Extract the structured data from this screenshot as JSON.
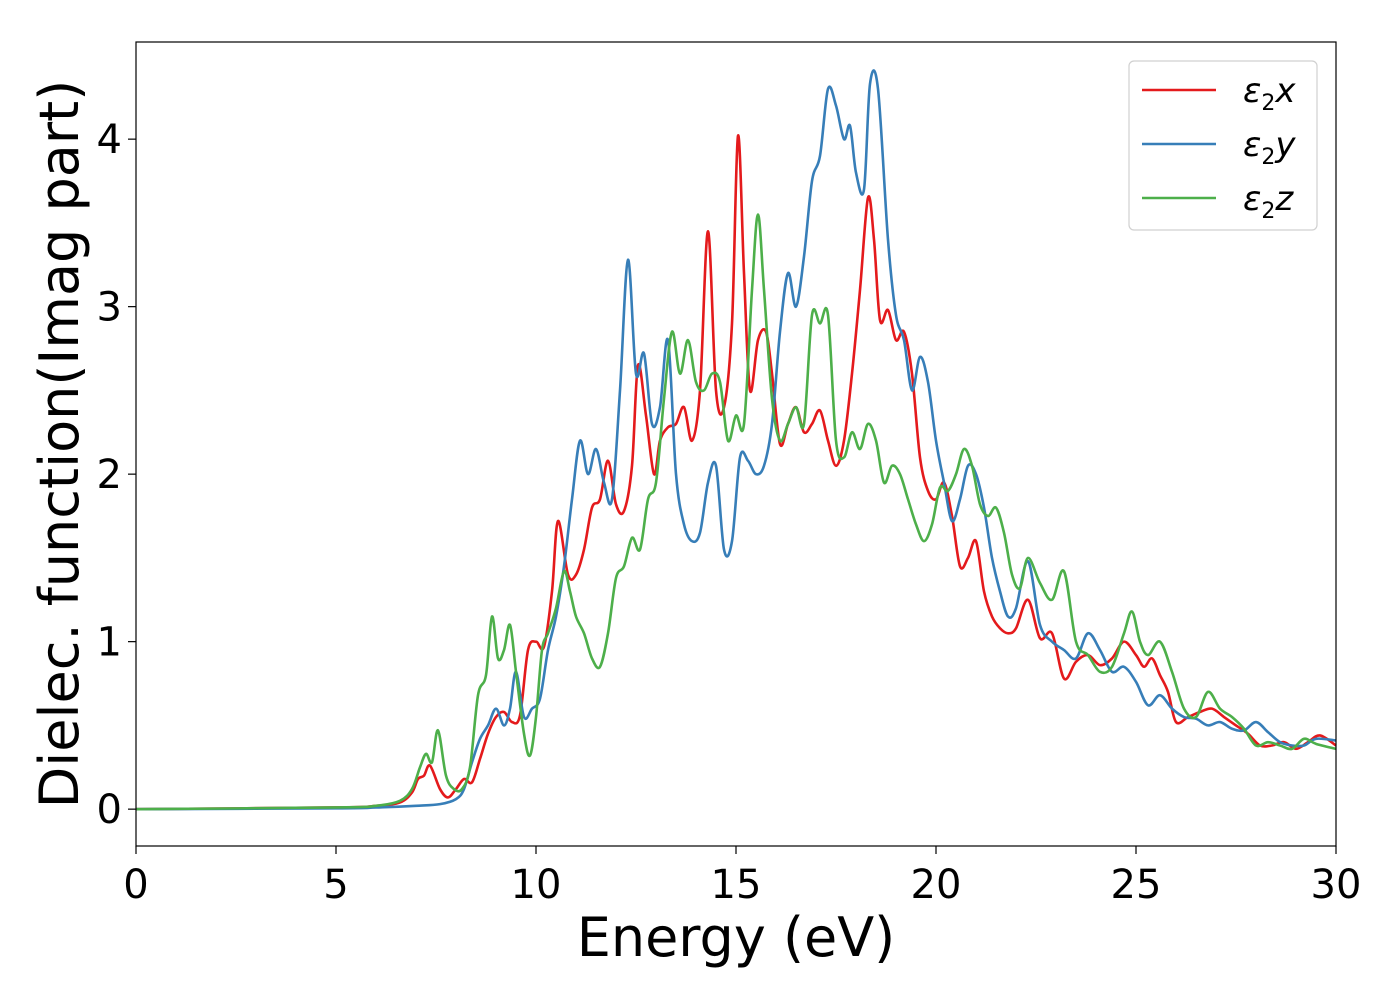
{
  "chart_data": {
    "type": "line",
    "xlabel": "Energy (eV)",
    "ylabel": "Dielec. function(Imag part)",
    "xlim": [
      0,
      30
    ],
    "ylim": [
      -0.22,
      4.58
    ],
    "xticks": [
      0,
      5,
      10,
      15,
      20,
      25,
      30
    ],
    "xtick_labels": [
      "0",
      "5",
      "10",
      "15",
      "20",
      "25",
      "30"
    ],
    "yticks": [
      0,
      1,
      2,
      3,
      4
    ],
    "ytick_labels": [
      "0",
      "1",
      "2",
      "3",
      "4"
    ],
    "grid": false,
    "legend_position": "top-right",
    "series": [
      {
        "name": "ε2x",
        "label_base": "ε",
        "label_sub": "2",
        "label_suffix": "x",
        "color": "#e41a1c",
        "x": [
          0,
          5,
          6,
          6.6,
          6.9,
          7.05,
          7.2,
          7.35,
          7.6,
          7.8,
          8.0,
          8.2,
          8.4,
          8.6,
          8.8,
          9.0,
          9.2,
          9.4,
          9.6,
          9.8,
          10.0,
          10.2,
          10.4,
          10.55,
          10.8,
          11.0,
          11.2,
          11.4,
          11.6,
          11.8,
          12.0,
          12.2,
          12.4,
          12.55,
          12.75,
          12.95,
          13.1,
          13.3,
          13.5,
          13.7,
          13.9,
          14.1,
          14.3,
          14.5,
          14.7,
          14.9,
          15.05,
          15.2,
          15.35,
          15.55,
          15.75,
          15.9,
          16.1,
          16.3,
          16.5,
          16.7,
          16.9,
          17.1,
          17.3,
          17.5,
          17.7,
          17.9,
          18.1,
          18.3,
          18.45,
          18.6,
          18.8,
          19.0,
          19.2,
          19.4,
          19.6,
          19.8,
          20.0,
          20.2,
          20.4,
          20.6,
          20.8,
          21.0,
          21.2,
          21.4,
          21.6,
          21.8,
          22.0,
          22.3,
          22.6,
          22.9,
          23.2,
          23.5,
          23.8,
          24.1,
          24.4,
          24.7,
          25.0,
          25.2,
          25.4,
          25.6,
          25.8,
          26.0,
          26.3,
          26.6,
          26.9,
          27.2,
          27.5,
          27.8,
          28.1,
          28.4,
          28.7,
          29.0,
          29.3,
          29.6,
          30.0
        ],
        "y": [
          0,
          0.01,
          0.02,
          0.04,
          0.1,
          0.18,
          0.2,
          0.26,
          0.12,
          0.07,
          0.12,
          0.18,
          0.16,
          0.3,
          0.45,
          0.55,
          0.58,
          0.52,
          0.56,
          0.95,
          1.0,
          0.97,
          1.3,
          1.72,
          1.4,
          1.4,
          1.55,
          1.8,
          1.85,
          2.08,
          1.82,
          1.78,
          2.05,
          2.65,
          2.35,
          2.0,
          2.2,
          2.28,
          2.3,
          2.4,
          2.2,
          2.5,
          3.45,
          2.5,
          2.4,
          2.9,
          4.02,
          3.2,
          2.5,
          2.8,
          2.85,
          2.6,
          2.18,
          2.3,
          2.4,
          2.25,
          2.3,
          2.38,
          2.2,
          2.05,
          2.2,
          2.6,
          3.1,
          3.65,
          3.4,
          2.92,
          2.98,
          2.8,
          2.85,
          2.6,
          2.1,
          1.9,
          1.85,
          1.95,
          1.75,
          1.45,
          1.5,
          1.6,
          1.3,
          1.15,
          1.08,
          1.05,
          1.08,
          1.25,
          1.02,
          1.05,
          0.78,
          0.88,
          0.92,
          0.86,
          0.9,
          1.0,
          0.92,
          0.85,
          0.9,
          0.8,
          0.7,
          0.52,
          0.55,
          0.58,
          0.6,
          0.55,
          0.5,
          0.45,
          0.38,
          0.38,
          0.4,
          0.36,
          0.4,
          0.44,
          0.38
        ]
      },
      {
        "name": "ε2y",
        "label_base": "ε",
        "label_sub": "2",
        "label_suffix": "y",
        "color": "#377eb8",
        "x": [
          0,
          5,
          6,
          7,
          7.6,
          8.0,
          8.2,
          8.4,
          8.6,
          8.8,
          9.0,
          9.2,
          9.35,
          9.5,
          9.7,
          9.9,
          10.1,
          10.3,
          10.5,
          10.7,
          10.9,
          11.1,
          11.3,
          11.5,
          11.7,
          11.9,
          12.1,
          12.3,
          12.5,
          12.7,
          12.9,
          13.1,
          13.3,
          13.5,
          13.7,
          13.9,
          14.1,
          14.3,
          14.5,
          14.7,
          14.9,
          15.1,
          15.3,
          15.5,
          15.7,
          15.9,
          16.1,
          16.3,
          16.5,
          16.7,
          16.9,
          17.1,
          17.3,
          17.5,
          17.7,
          17.85,
          18.0,
          18.2,
          18.35,
          18.55,
          18.8,
          19.0,
          19.2,
          19.4,
          19.6,
          19.8,
          20.0,
          20.2,
          20.4,
          20.6,
          20.8,
          21.0,
          21.2,
          21.4,
          21.6,
          21.8,
          22.0,
          22.3,
          22.6,
          22.9,
          23.2,
          23.5,
          23.8,
          24.1,
          24.4,
          24.7,
          25.0,
          25.3,
          25.6,
          25.9,
          26.2,
          26.5,
          26.8,
          27.1,
          27.4,
          27.7,
          28.0,
          28.3,
          28.6,
          28.9,
          29.2,
          29.5,
          30.0
        ],
        "y": [
          0,
          0.005,
          0.01,
          0.02,
          0.03,
          0.06,
          0.12,
          0.28,
          0.42,
          0.5,
          0.6,
          0.5,
          0.6,
          0.82,
          0.55,
          0.6,
          0.66,
          0.95,
          1.15,
          1.45,
          1.85,
          2.2,
          2.0,
          2.15,
          1.95,
          1.85,
          2.5,
          3.28,
          2.6,
          2.72,
          2.3,
          2.4,
          2.8,
          2.0,
          1.7,
          1.6,
          1.65,
          1.95,
          2.05,
          1.55,
          1.6,
          2.1,
          2.08,
          2.0,
          2.05,
          2.3,
          2.85,
          3.2,
          3.0,
          3.3,
          3.75,
          3.9,
          4.3,
          4.2,
          4.0,
          4.08,
          3.8,
          3.7,
          4.33,
          4.3,
          3.4,
          2.95,
          2.8,
          2.5,
          2.7,
          2.55,
          2.2,
          1.95,
          1.72,
          1.85,
          2.05,
          2.0,
          1.8,
          1.5,
          1.3,
          1.15,
          1.2,
          1.48,
          1.1,
          1.0,
          0.95,
          0.9,
          1.05,
          0.95,
          0.82,
          0.85,
          0.76,
          0.62,
          0.68,
          0.6,
          0.55,
          0.54,
          0.5,
          0.52,
          0.48,
          0.47,
          0.52,
          0.46,
          0.4,
          0.38,
          0.38,
          0.42,
          0.41
        ]
      },
      {
        "name": "ε2z",
        "label_base": "ε",
        "label_sub": "2",
        "label_suffix": "z",
        "color": "#4daf4a",
        "x": [
          0,
          5,
          6,
          6.6,
          6.9,
          7.1,
          7.25,
          7.4,
          7.55,
          7.75,
          7.95,
          8.15,
          8.35,
          8.55,
          8.75,
          8.9,
          9.05,
          9.2,
          9.35,
          9.5,
          9.7,
          9.85,
          10.0,
          10.15,
          10.3,
          10.5,
          10.7,
          10.85,
          11.0,
          11.2,
          11.4,
          11.6,
          11.8,
          12.0,
          12.2,
          12.4,
          12.6,
          12.8,
          13.0,
          13.2,
          13.4,
          13.6,
          13.8,
          14.0,
          14.2,
          14.4,
          14.6,
          14.8,
          15.0,
          15.2,
          15.4,
          15.55,
          15.7,
          15.9,
          16.1,
          16.3,
          16.5,
          16.7,
          16.9,
          17.1,
          17.3,
          17.5,
          17.7,
          17.9,
          18.1,
          18.3,
          18.5,
          18.7,
          18.9,
          19.1,
          19.3,
          19.5,
          19.7,
          19.9,
          20.1,
          20.3,
          20.5,
          20.7,
          20.9,
          21.1,
          21.3,
          21.5,
          21.7,
          21.9,
          22.1,
          22.3,
          22.6,
          22.9,
          23.2,
          23.5,
          23.8,
          24.1,
          24.4,
          24.7,
          24.9,
          25.1,
          25.3,
          25.6,
          25.9,
          26.2,
          26.5,
          26.8,
          27.1,
          27.4,
          27.7,
          28.0,
          28.3,
          28.6,
          28.9,
          29.2,
          29.5,
          30.0
        ],
        "y": [
          0,
          0.01,
          0.02,
          0.05,
          0.12,
          0.25,
          0.33,
          0.28,
          0.47,
          0.2,
          0.12,
          0.12,
          0.25,
          0.68,
          0.8,
          1.15,
          0.9,
          0.95,
          1.1,
          0.82,
          0.45,
          0.32,
          0.55,
          0.95,
          1.05,
          1.2,
          1.42,
          1.3,
          1.15,
          1.05,
          0.9,
          0.85,
          1.05,
          1.38,
          1.45,
          1.62,
          1.55,
          1.85,
          1.95,
          2.45,
          2.85,
          2.6,
          2.8,
          2.55,
          2.5,
          2.6,
          2.55,
          2.2,
          2.35,
          2.3,
          3.1,
          3.55,
          3.1,
          2.45,
          2.2,
          2.3,
          2.4,
          2.3,
          2.95,
          2.9,
          2.95,
          2.2,
          2.1,
          2.25,
          2.15,
          2.3,
          2.2,
          1.95,
          2.05,
          2.0,
          1.85,
          1.7,
          1.6,
          1.7,
          1.92,
          1.9,
          2.0,
          2.15,
          2.05,
          1.82,
          1.75,
          1.8,
          1.65,
          1.4,
          1.32,
          1.5,
          1.35,
          1.25,
          1.42,
          1.0,
          0.92,
          0.82,
          0.85,
          1.05,
          1.18,
          1.0,
          0.92,
          1.0,
          0.82,
          0.6,
          0.55,
          0.7,
          0.6,
          0.55,
          0.48,
          0.38,
          0.4,
          0.38,
          0.36,
          0.42,
          0.39,
          0.36
        ]
      }
    ]
  }
}
